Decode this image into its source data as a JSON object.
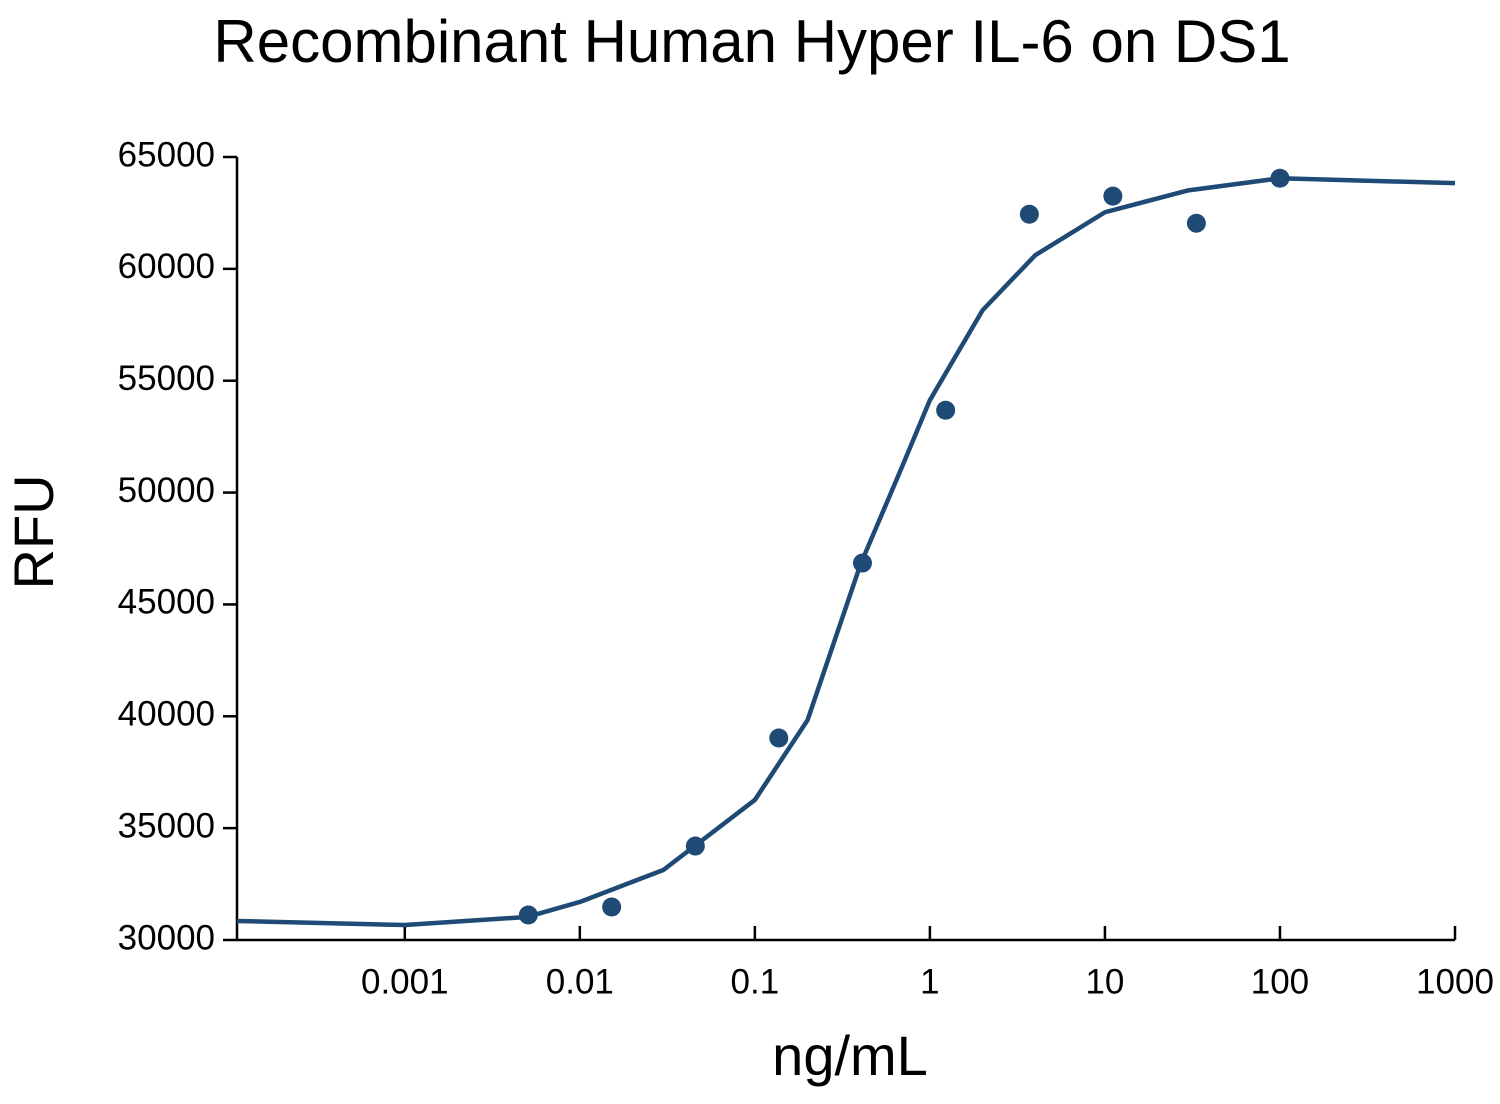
{
  "chart_data": {
    "type": "scatter",
    "title": "Recombinant Human Hyper IL-6 on DS1",
    "x_label": "ng/mL",
    "y_label": "RFU",
    "x_log": true,
    "xlim": [
      0.00011,
      1000
    ],
    "xticks": [
      0.001,
      0.01,
      0.1,
      1,
      10,
      100,
      1000
    ],
    "ylim": [
      30000,
      65000
    ],
    "yticks": [
      30000,
      35000,
      40000,
      45000,
      50000,
      55000,
      60000,
      65000
    ],
    "color": "#1f4a75",
    "x": [
      0.00508,
      0.0152,
      0.0457,
      0.137,
      0.412,
      1.23,
      3.7,
      11.1,
      33.3,
      100
    ],
    "values": [
      31117,
      31475,
      34200,
      39030,
      46850,
      53680,
      62440,
      63250,
      62040,
      64050
    ],
    "fit": {
      "x": [
        0.00011,
        0.001,
        0.005,
        0.01,
        0.03,
        0.1,
        0.2,
        0.4,
        0.7,
        1,
        2,
        4,
        10,
        30,
        100,
        1000
      ],
      "values": [
        30850,
        30670,
        31030,
        31700,
        33130,
        36260,
        39830,
        46760,
        51230,
        54130,
        58150,
        60610,
        62530,
        63510,
        64050,
        63830
      ]
    }
  }
}
